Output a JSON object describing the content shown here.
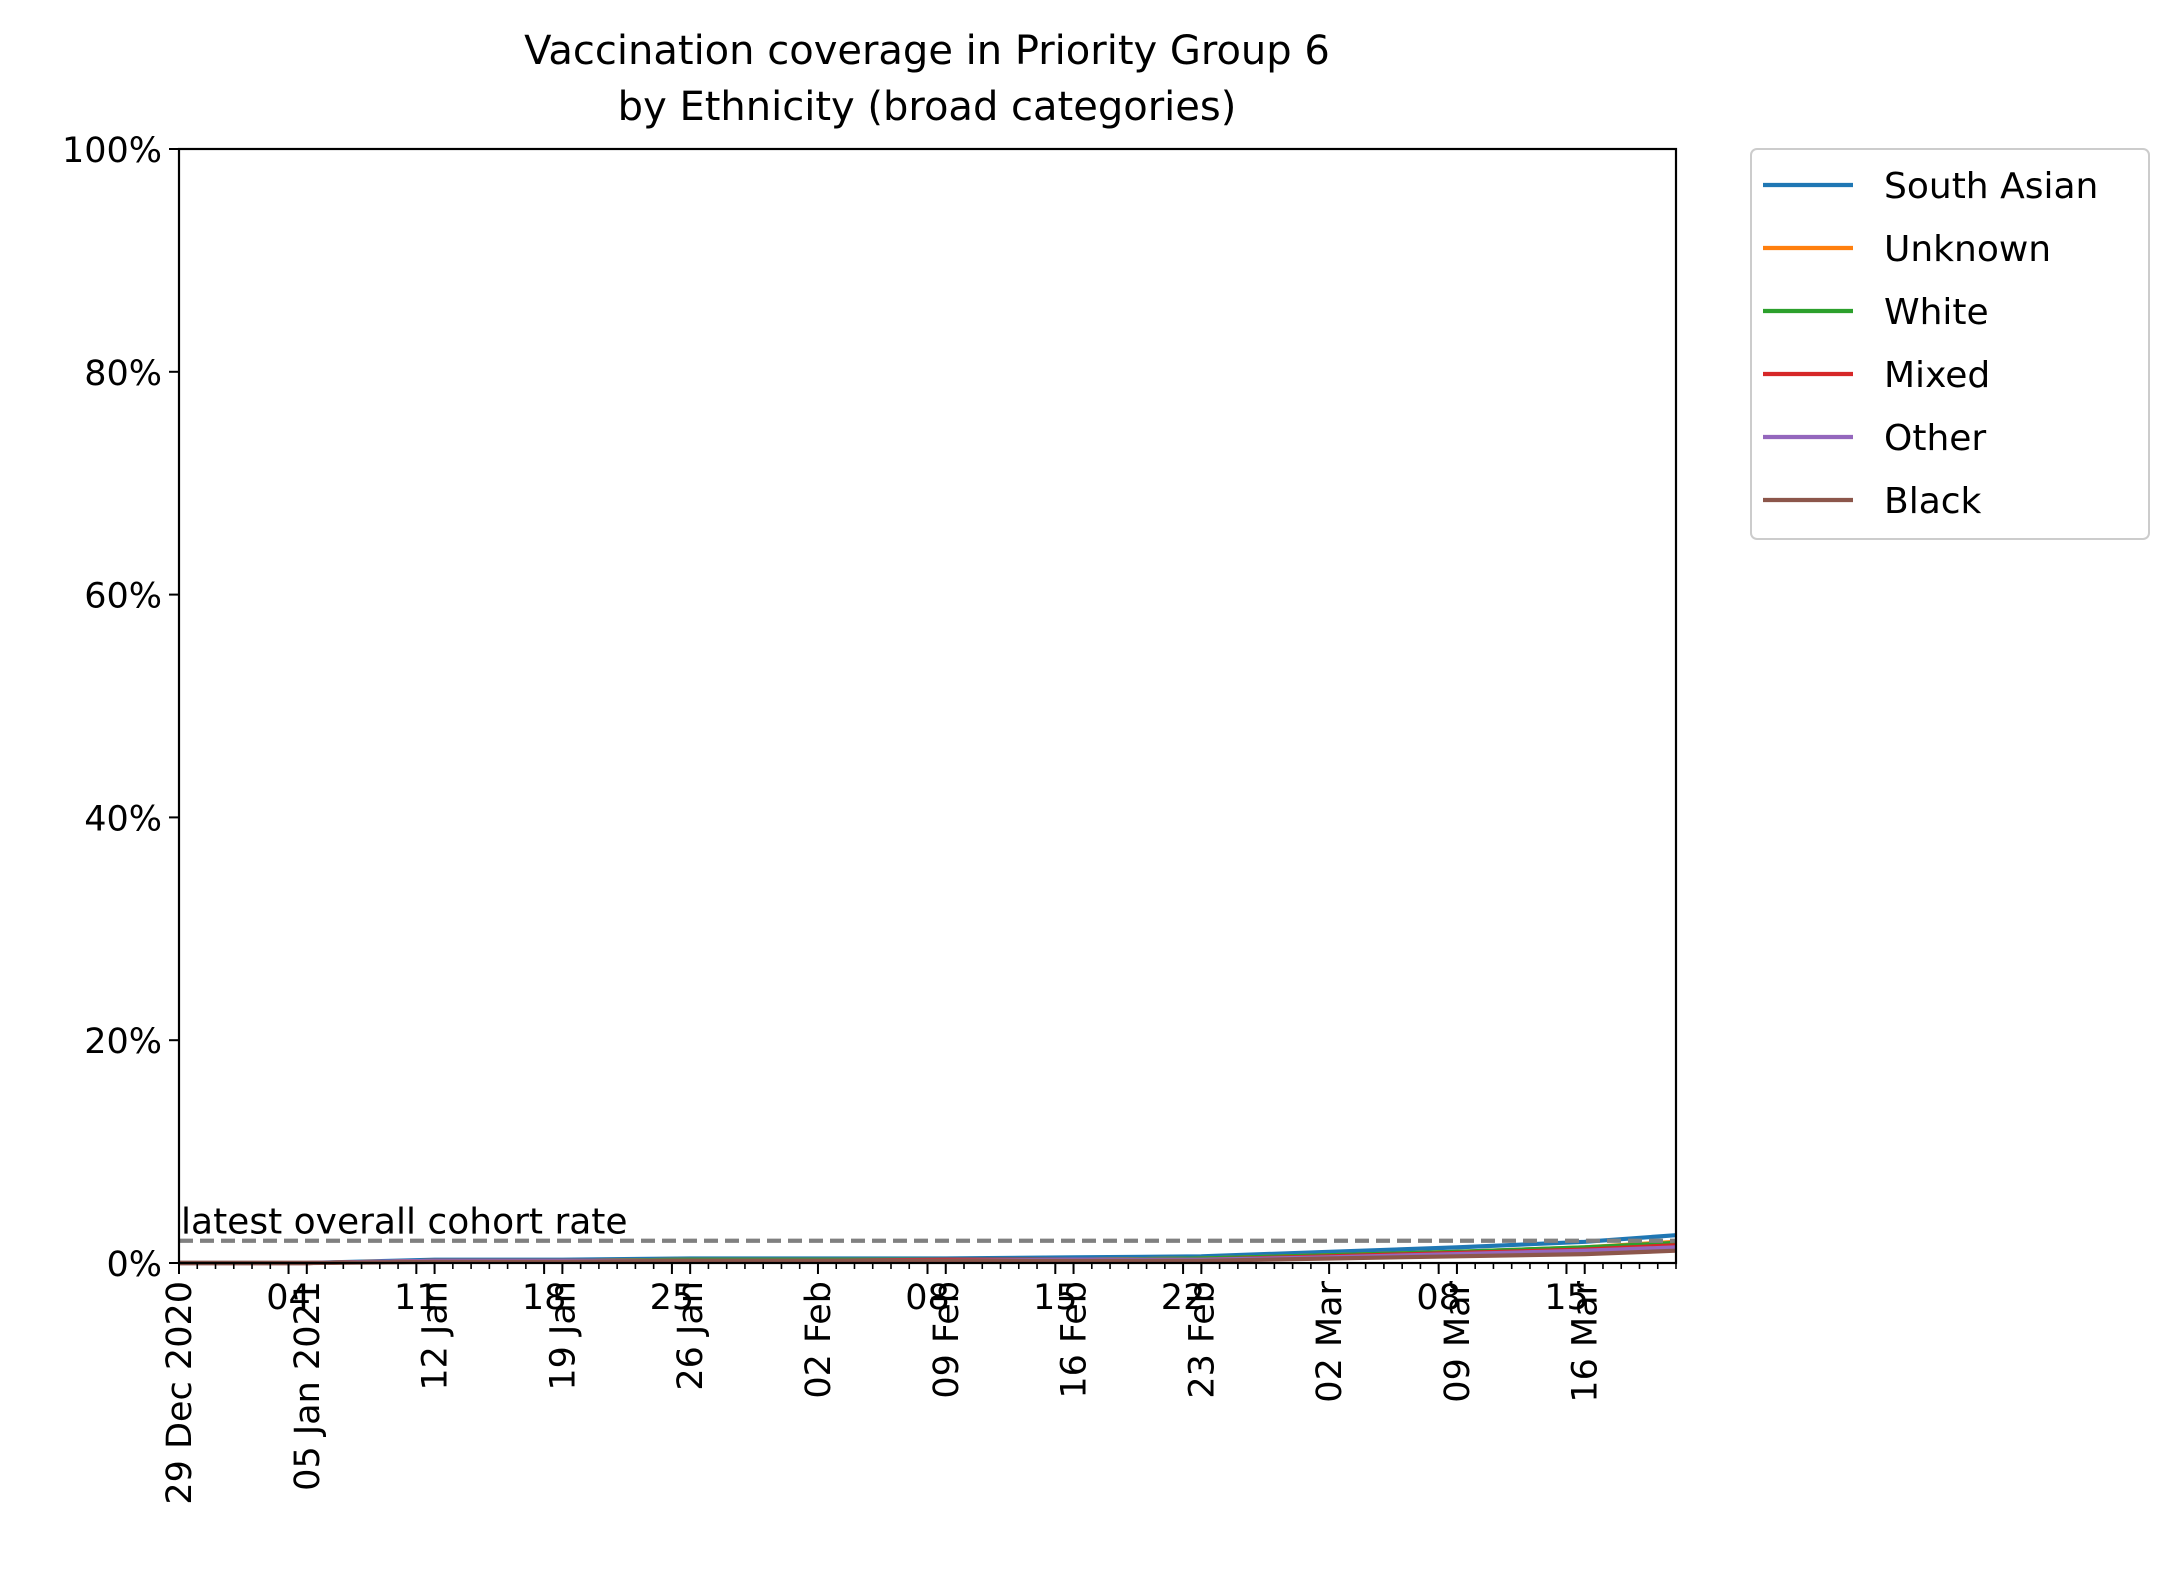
{
  "chart_data": {
    "type": "line",
    "title_line1": "Vaccination coverage in Priority Group 6",
    "title_line2": "by Ethnicity (broad categories)",
    "xlabel": "",
    "ylabel": "",
    "ylim": [
      0,
      100
    ],
    "xlim": [
      "2020-12-29",
      "2021-03-21"
    ],
    "yticks": [
      {
        "value": 0,
        "label": "0%"
      },
      {
        "value": 20,
        "label": "20%"
      },
      {
        "value": 40,
        "label": "40%"
      },
      {
        "value": 60,
        "label": "60%"
      },
      {
        "value": 80,
        "label": "80%"
      },
      {
        "value": 100,
        "label": "100%"
      }
    ],
    "xticks_major": [
      {
        "date": "2020-12-29",
        "label": "29 Dec 2020"
      },
      {
        "date": "2021-01-05",
        "label": "05 Jan 2021"
      },
      {
        "date": "2021-01-12",
        "label": "12 Jan"
      },
      {
        "date": "2021-01-19",
        "label": "19 Jan"
      },
      {
        "date": "2021-01-26",
        "label": "26 Jan"
      },
      {
        "date": "2021-02-02",
        "label": "02 Feb"
      },
      {
        "date": "2021-02-09",
        "label": "09 Feb"
      },
      {
        "date": "2021-02-16",
        "label": "16 Feb"
      },
      {
        "date": "2021-02-23",
        "label": "23 Feb"
      },
      {
        "date": "2021-03-02",
        "label": "02 Mar"
      },
      {
        "date": "2021-03-09",
        "label": "09 Mar"
      },
      {
        "date": "2021-03-16",
        "label": "16 Mar"
      }
    ],
    "xticks_minor_labels": [
      {
        "date": "2021-01-04",
        "label": "04"
      },
      {
        "date": "2021-01-11",
        "label": "11"
      },
      {
        "date": "2021-01-18",
        "label": "18"
      },
      {
        "date": "2021-01-25",
        "label": "25"
      },
      {
        "date": "2021-02-08",
        "label": "08"
      },
      {
        "date": "2021-02-15",
        "label": "15"
      },
      {
        "date": "2021-02-22",
        "label": "22"
      },
      {
        "date": "2021-03-08",
        "label": "08"
      },
      {
        "date": "2021-03-15",
        "label": "15"
      }
    ],
    "reference_line": {
      "label": "latest overall cohort rate",
      "value": 2.0,
      "color": "#808080",
      "style": "dashed"
    },
    "x": [
      "2020-12-29",
      "2021-01-05",
      "2021-01-12",
      "2021-01-19",
      "2021-01-26",
      "2021-02-02",
      "2021-02-09",
      "2021-02-16",
      "2021-02-23",
      "2021-03-02",
      "2021-03-09",
      "2021-03-16",
      "2021-03-21"
    ],
    "series": [
      {
        "name": "South Asian",
        "color": "#1f77b4",
        "values": [
          0,
          0,
          0.3,
          0.3,
          0.4,
          0.4,
          0.4,
          0.5,
          0.6,
          1.0,
          1.4,
          1.9,
          2.5
        ]
      },
      {
        "name": "Unknown",
        "color": "#ff7f0e",
        "values": [
          0,
          0,
          0.2,
          0.2,
          0.3,
          0.3,
          0.3,
          0.3,
          0.4,
          0.7,
          1.0,
          1.4,
          1.9
        ]
      },
      {
        "name": "White",
        "color": "#2ca02c",
        "values": [
          0,
          0,
          0.2,
          0.2,
          0.3,
          0.3,
          0.3,
          0.3,
          0.4,
          0.7,
          1.0,
          1.4,
          1.8
        ]
      },
      {
        "name": "Mixed",
        "color": "#d62728",
        "values": [
          0,
          0,
          0.2,
          0.2,
          0.2,
          0.2,
          0.3,
          0.3,
          0.3,
          0.6,
          0.9,
          1.2,
          1.6
        ]
      },
      {
        "name": "Other",
        "color": "#9467bd",
        "values": [
          0,
          0,
          0.2,
          0.2,
          0.2,
          0.2,
          0.2,
          0.3,
          0.3,
          0.5,
          0.8,
          1.1,
          1.4
        ]
      },
      {
        "name": "Black",
        "color": "#8c564b",
        "values": [
          0,
          0,
          0.1,
          0.1,
          0.2,
          0.2,
          0.2,
          0.2,
          0.2,
          0.4,
          0.6,
          0.8,
          1.1
        ]
      }
    ],
    "legend_position": "outside-right-top",
    "grid": false
  }
}
